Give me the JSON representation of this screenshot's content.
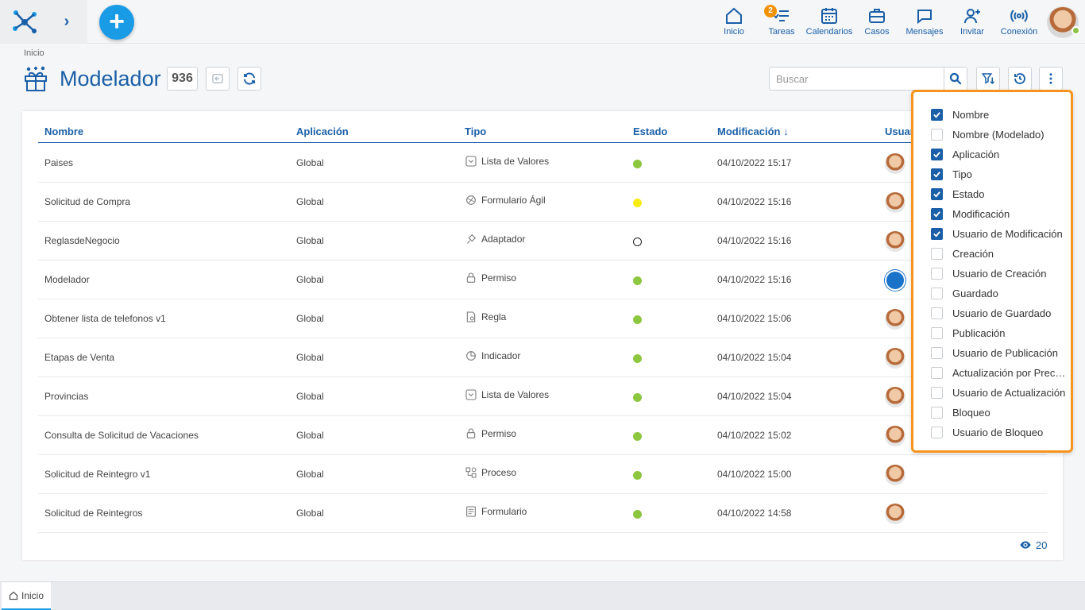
{
  "topbar": {
    "nav": [
      {
        "label": "Inicio",
        "icon": "home-icon"
      },
      {
        "label": "Tareas",
        "icon": "tasks-icon",
        "badge": "2"
      },
      {
        "label": "Calendarios",
        "icon": "calendar-icon"
      },
      {
        "label": "Casos",
        "icon": "briefcase-icon"
      },
      {
        "label": "Mensajes",
        "icon": "chat-icon"
      },
      {
        "label": "Invitar",
        "icon": "add-user-icon"
      },
      {
        "label": "Conexión",
        "icon": "connection-icon"
      }
    ]
  },
  "header": {
    "breadcrumb": "Inicio",
    "title": "Modelador",
    "count": "936",
    "search_placeholder": "Buscar"
  },
  "table": {
    "columns": [
      "Nombre",
      "Aplicación",
      "Tipo",
      "Estado",
      "Modificación",
      "Usuario"
    ],
    "rows": [
      {
        "nombre": "Paises",
        "aplicacion": "Global",
        "tipo": "Lista de Valores",
        "tipo_icon": "list-values-icon",
        "estado": "#8dc63f",
        "modificacion": "04/10/2022 15:17",
        "usuario": "user"
      },
      {
        "nombre": "Solicitud de Compra",
        "aplicacion": "Global",
        "tipo": "Formulario Ágil",
        "tipo_icon": "agile-form-icon",
        "estado": "#f7ec13",
        "modificacion": "04/10/2022 15:16",
        "usuario": "user"
      },
      {
        "nombre": "ReglasdeNegocio",
        "aplicacion": "Global",
        "tipo": "Adaptador",
        "tipo_icon": "adapter-icon",
        "estado": "hollow",
        "modificacion": "04/10/2022 15:16",
        "usuario": "user"
      },
      {
        "nombre": "Modelador",
        "aplicacion": "Global",
        "tipo": "Permiso",
        "tipo_icon": "lock-icon",
        "estado": "#8dc63f",
        "modificacion": "04/10/2022 15:16",
        "usuario": "system"
      },
      {
        "nombre": "Obtener lista de telefonos v1",
        "aplicacion": "Global",
        "tipo": "Regla",
        "tipo_icon": "rule-icon",
        "estado": "#8dc63f",
        "modificacion": "04/10/2022 15:06",
        "usuario": "user"
      },
      {
        "nombre": "Etapas de Venta",
        "aplicacion": "Global",
        "tipo": "Indicador",
        "tipo_icon": "indicator-icon",
        "estado": "#8dc63f",
        "modificacion": "04/10/2022 15:04",
        "usuario": "user"
      },
      {
        "nombre": "Provincias",
        "aplicacion": "Global",
        "tipo": "Lista de Valores",
        "tipo_icon": "list-values-icon",
        "estado": "#8dc63f",
        "modificacion": "04/10/2022 15:04",
        "usuario": "user"
      },
      {
        "nombre": "Consulta de Solicitud de Vacaciones",
        "aplicacion": "Global",
        "tipo": "Permiso",
        "tipo_icon": "lock-icon",
        "estado": "#8dc63f",
        "modificacion": "04/10/2022 15:02",
        "usuario": "user"
      },
      {
        "nombre": "Solicitud de Reintegro v1",
        "aplicacion": "Global",
        "tipo": "Proceso",
        "tipo_icon": "process-icon",
        "estado": "#8dc63f",
        "modificacion": "04/10/2022 15:00",
        "usuario": "user"
      },
      {
        "nombre": "Solicitud de Reintegros",
        "aplicacion": "Global",
        "tipo": "Formulario",
        "tipo_icon": "form-icon",
        "estado": "#8dc63f",
        "modificacion": "04/10/2022 14:58",
        "usuario": "user"
      }
    ],
    "page_size": "20"
  },
  "column_chooser": [
    {
      "label": "Nombre",
      "checked": true
    },
    {
      "label": "Nombre (Modelado)",
      "checked": false
    },
    {
      "label": "Aplicación",
      "checked": true
    },
    {
      "label": "Tipo",
      "checked": true
    },
    {
      "label": "Estado",
      "checked": true
    },
    {
      "label": "Modificación",
      "checked": true
    },
    {
      "label": "Usuario de Modificación",
      "checked": true
    },
    {
      "label": "Creación",
      "checked": false
    },
    {
      "label": "Usuario de Creación",
      "checked": false
    },
    {
      "label": "Guardado",
      "checked": false
    },
    {
      "label": "Usuario de Guardado",
      "checked": false
    },
    {
      "label": "Publicación",
      "checked": false
    },
    {
      "label": "Usuario de Publicación",
      "checked": false
    },
    {
      "label": "Actualización por Precedencia",
      "checked": false
    },
    {
      "label": "Usuario de Actualización",
      "checked": false
    },
    {
      "label": "Bloqueo",
      "checked": false
    },
    {
      "label": "Usuario de Bloqueo",
      "checked": false
    }
  ],
  "bottom_tabs": [
    {
      "label": "Inicio"
    }
  ],
  "colors": {
    "accent": "#1a5fa8",
    "highlight": "#f7941d"
  }
}
